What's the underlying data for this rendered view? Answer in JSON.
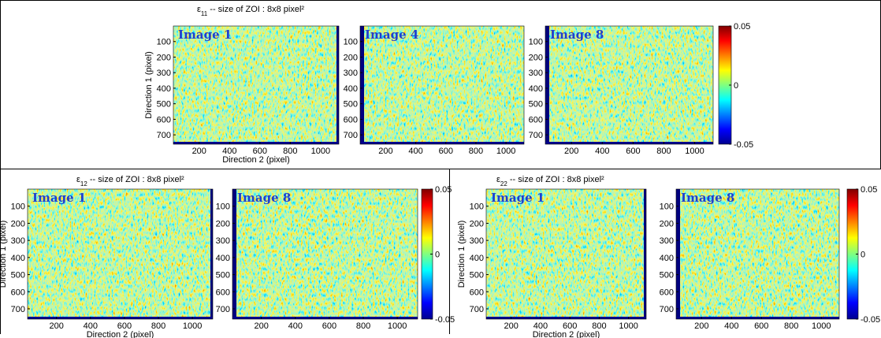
{
  "panels": [
    {
      "symbol": "ε",
      "subscript": "11",
      "title": " -- size of ZOI : 8x8 pixel²",
      "maps": [
        {
          "label": "Image 1"
        },
        {
          "label": "Image 4"
        },
        {
          "label": "Image 8"
        }
      ],
      "xlabel": "Direction 2 (pixel)",
      "ylabel": "Direction 1 (pixel)",
      "colorbar_ticks": [
        0.05,
        0,
        -0.05
      ]
    },
    {
      "symbol": "ε",
      "subscript": "12",
      "title": " -- size of ZOI : 8x8 pixel²",
      "maps": [
        {
          "label": "Image 1"
        },
        {
          "label": "Image 8"
        }
      ],
      "xlabel": "Direction 2 (pixel)",
      "ylabel": "Direction 1 (pixel)",
      "colorbar_ticks": [
        0.05,
        0,
        -0.05
      ]
    },
    {
      "symbol": "ε",
      "subscript": "22",
      "title": " -- size of ZOI : 8x8 pixel²",
      "maps": [
        {
          "label": "Image 1"
        },
        {
          "label": "Image 8"
        }
      ],
      "xlabel": "Direction 2 (pixel)",
      "ylabel": "Direction 1 (pixel)",
      "colorbar_ticks": [
        0.05,
        0,
        -0.05
      ]
    }
  ],
  "xticks": [
    200,
    400,
    600,
    800,
    1000
  ],
  "yticks": [
    100,
    200,
    300,
    400,
    500,
    600,
    700
  ],
  "xlim": [
    30,
    1120
  ],
  "ylim": [
    0,
    760
  ],
  "clim": [
    -0.05,
    0.05
  ]
}
